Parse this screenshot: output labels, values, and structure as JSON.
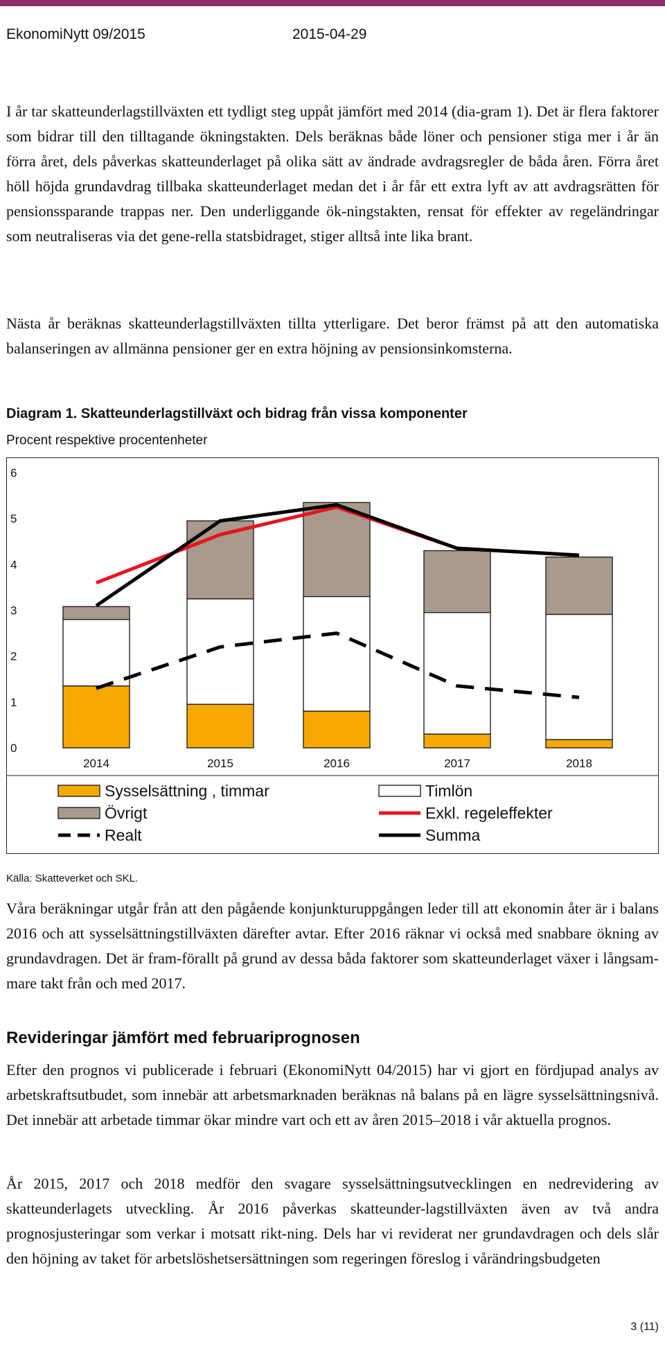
{
  "header": {
    "publication": "EkonomiNytt 09/2015",
    "date": "2015-04-29"
  },
  "colors": {
    "accent_bar": "#8f2d6e",
    "sysselsattning": "#f7a800",
    "ovrigt": "#a89a8c",
    "timlon": "#ffffff",
    "exkl_regeleffekter": "#e8141c",
    "summa": "#000000",
    "realt": "#000000"
  },
  "paragraphs": {
    "p1": "I år tar skatteunderlagstillväxten ett tydligt steg uppåt jämfört med 2014 (dia-gram 1). Det är flera faktorer som bidrar till den tilltagande ökningstakten. Dels beräknas både löner och pensioner stiga mer i år än förra året, dels påverkas skatteunderlaget på olika sätt av ändrade avdragsregler de båda åren. Förra året höll höjda grundavdrag tillbaka skatteunderlaget medan det i år får ett extra lyft av att avdragsrätten för pensionssparande trappas ner. Den underliggande ök-ningstakten, rensat för effekter av regeländringar som neutraliseras via det gene-rella statsbidraget, stiger alltså inte lika brant.",
    "p2": "Nästa år beräknas skatteunderlagstillväxten tillta ytterligare. Det beror främst på att den automatiska balanseringen av allmänna pensioner ger en extra höjning av pensionsinkomsterna.",
    "p3": "Våra beräkningar utgår från att den pågående konjunkturuppgången leder till att ekonomin åter är i balans 2016 och att sysselsättningstillväxten därefter avtar. Efter 2016 räknar vi också med snabbare ökning av grundavdragen. Det är fram-förallt på grund av dessa båda faktorer som skatteunderlaget växer i långsam-mare takt från och med 2017.",
    "p4": "Efter den prognos vi publicerade i februari (EkonomiNytt 04/2015) har vi gjort en fördjupad analys av arbetskraftsutbudet, som innebär att arbetsmarknaden beräknas nå balans på en lägre sysselsättningsnivå. Det innebär att arbetade timmar ökar mindre vart och ett av åren 2015–2018 i vår aktuella prognos.",
    "p5": "År 2015, 2017 och 2018 medför den svagare sysselsättningsutvecklingen en nedrevidering av skatteunderlagets utveckling. År 2016 påverkas skatteunder-lagstillväxten även av två andra prognosjusteringar som verkar i motsatt rikt-ning. Dels har vi reviderat ner grundavdragen och dels slår den höjning av taket för arbetslöshetsersättningen som regeringen föreslog i vårändringsbudgeten"
  },
  "diagram": {
    "label": "Diagram 1. Skatteunderlagstillväxt och bidrag från vissa komponenter",
    "unit_note": "Procent respektive procentenheter",
    "source": "Källa: Skatteverket och SKL."
  },
  "section_heading": "Revideringar jämfört med februariprognosen",
  "page_number": "3 (11)",
  "chart_data": {
    "type": "bar",
    "stacked": true,
    "categories": [
      "2014",
      "2015",
      "2016",
      "2017",
      "2018"
    ],
    "ylim": [
      0,
      6
    ],
    "yticks": [
      "0",
      "1",
      "2",
      "3",
      "4",
      "5",
      "6"
    ],
    "grid": false,
    "legend_position": "bottom",
    "series": [
      {
        "name": "Sysselsättning , timmar",
        "kind": "bar",
        "values": [
          1.35,
          0.95,
          0.8,
          0.3,
          0.18
        ]
      },
      {
        "name": "Timlön",
        "kind": "bar",
        "values": [
          1.45,
          2.3,
          2.5,
          2.65,
          2.73
        ]
      },
      {
        "name": "Övrigt",
        "kind": "bar",
        "values": [
          0.28,
          1.7,
          2.05,
          1.35,
          1.25
        ]
      },
      {
        "name": "Exkl. regeleffekter",
        "kind": "line",
        "values": [
          3.6,
          4.65,
          5.25,
          4.35,
          4.2
        ]
      },
      {
        "name": "Realt",
        "kind": "dashed-line",
        "values": [
          1.3,
          2.2,
          2.5,
          1.35,
          1.1
        ]
      },
      {
        "name": "Summa",
        "kind": "line",
        "values": [
          3.1,
          4.95,
          5.3,
          4.35,
          4.2
        ]
      }
    ],
    "legend_order": [
      "Sysselsättning , timmar",
      "Timlön",
      "Övrigt",
      "Exkl. regeleffekter",
      "Realt",
      "Summa"
    ]
  }
}
